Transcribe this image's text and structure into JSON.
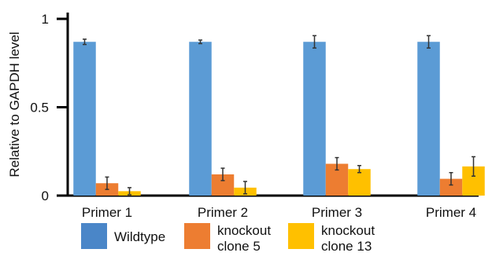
{
  "chart_data": {
    "type": "bar",
    "categories": [
      "Primer 1",
      "Primer 2",
      "Primer 3",
      "Primer 4"
    ],
    "series": [
      {
        "name": "Wildtype",
        "color": "#5B9BD5",
        "values": [
          0.87,
          0.87,
          0.87,
          0.87
        ],
        "errors": [
          0.015,
          0.01,
          0.035,
          0.035
        ]
      },
      {
        "name": "knockout clone 5",
        "color": "#ED7D31",
        "values": [
          0.07,
          0.12,
          0.18,
          0.095
        ],
        "errors": [
          0.035,
          0.035,
          0.035,
          0.035
        ]
      },
      {
        "name": "knockout clone 13",
        "color": "#FFC000",
        "values": [
          0.025,
          0.045,
          0.15,
          0.165
        ],
        "errors": [
          0.02,
          0.035,
          0.02,
          0.055
        ]
      }
    ],
    "ylabel": "Relative to GAPDH level",
    "ylim": [
      0,
      1
    ],
    "yticks": [
      0,
      0.5,
      1
    ],
    "ytick_labels": [
      "0",
      "0.5",
      "1"
    ],
    "grid": false,
    "legend_position": "bottom"
  },
  "legend": {
    "items": [
      {
        "lines": [
          "Wildtype"
        ],
        "color": "#4A86C8"
      },
      {
        "lines": [
          "knockout",
          "clone 5"
        ],
        "color": "#ED7D31"
      },
      {
        "lines": [
          "knockout",
          "clone 13"
        ],
        "color": "#FFC000"
      }
    ]
  }
}
